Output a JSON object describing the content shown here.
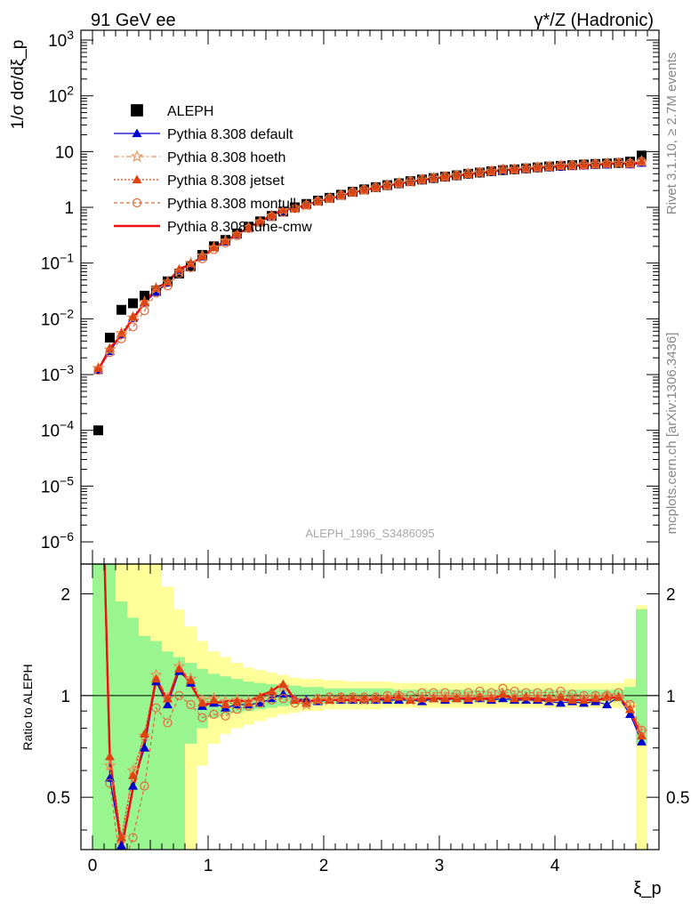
{
  "header": {
    "left": "91 GeV ee",
    "right": "γ*/Z (Hadronic)"
  },
  "side": {
    "rivet": "Rivet 3.1.10, ≥ 2.7M events",
    "mcplots": "mcplots.cern.ch [arXiv:1306.3436]"
  },
  "watermark": "ALEPH_1996_S3486095",
  "chart_data": [
    {
      "type": "scatter",
      "panel": "main",
      "ylabel": "1/σ dσ/dξ_p",
      "yscale": "log",
      "ylim": [
        4e-07,
        1500
      ],
      "xlim": [
        -0.1,
        4.9
      ],
      "ytick_labels": [
        "10^-6",
        "10^-5",
        "10^-4",
        "10^-3",
        "10^-2",
        "10^-1",
        "1",
        "10",
        "10^2",
        "10^3"
      ],
      "legend_position": "top-left",
      "x": [
        0.05,
        0.15,
        0.25,
        0.35,
        0.45,
        0.55,
        0.65,
        0.75,
        0.85,
        0.95,
        1.05,
        1.15,
        1.25,
        1.35,
        1.45,
        1.55,
        1.65,
        1.75,
        1.85,
        1.95,
        2.05,
        2.15,
        2.25,
        2.35,
        2.45,
        2.55,
        2.65,
        2.75,
        2.85,
        2.95,
        3.05,
        3.15,
        3.25,
        3.35,
        3.45,
        3.55,
        3.65,
        3.75,
        3.85,
        3.95,
        4.05,
        4.15,
        4.25,
        4.35,
        4.45,
        4.55,
        4.65,
        4.75
      ],
      "series": [
        {
          "name": "ALEPH",
          "marker": "square",
          "color": "#000000",
          "values": [
            0.0001,
            0.0046,
            0.0145,
            0.019,
            0.026,
            0.032,
            0.047,
            0.065,
            0.088,
            0.14,
            0.2,
            0.26,
            0.34,
            0.45,
            0.56,
            0.7,
            0.84,
            1.0,
            1.15,
            1.32,
            1.48,
            1.68,
            1.9,
            2.1,
            2.3,
            2.5,
            2.7,
            2.95,
            3.15,
            3.35,
            3.55,
            3.75,
            4.0,
            4.2,
            4.45,
            4.65,
            4.8,
            5.0,
            5.2,
            5.4,
            5.55,
            5.7,
            5.85,
            6.0,
            6.1,
            6.25,
            6.6,
            8.5
          ]
        },
        {
          "name": "Pythia 8.308 default",
          "marker": "triangle",
          "color": "#0000cc",
          "values": [
            0.0012,
            0.0026,
            0.0052,
            0.0103,
            0.0195,
            0.03,
            0.044,
            0.072,
            0.096,
            0.13,
            0.19,
            0.24,
            0.32,
            0.42,
            0.53,
            0.69,
            0.85,
            0.98,
            1.12,
            1.27,
            1.43,
            1.63,
            1.85,
            2.05,
            2.24,
            2.43,
            2.63,
            2.86,
            3.03,
            3.28,
            3.45,
            3.67,
            3.88,
            4.12,
            4.32,
            4.55,
            4.66,
            4.86,
            5.04,
            5.19,
            5.29,
            5.46,
            5.56,
            5.73,
            5.77,
            6.19,
            5.81,
            6.2
          ]
        },
        {
          "name": "Pythia 8.308 hoeth",
          "marker": "star",
          "color": "#e8925a",
          "values": [
            0.0013,
            0.0028,
            0.0055,
            0.0105,
            0.0198,
            0.035,
            0.046,
            0.071,
            0.1,
            0.136,
            0.19,
            0.25,
            0.33,
            0.43,
            0.55,
            0.7,
            0.89,
            0.97,
            1.08,
            1.28,
            1.44,
            1.64,
            1.86,
            2.04,
            2.25,
            2.47,
            2.69,
            2.86,
            3.1,
            3.32,
            3.5,
            3.7,
            3.94,
            4.17,
            4.39,
            4.7,
            4.74,
            4.95,
            5.15,
            5.31,
            5.52,
            5.6,
            5.7,
            5.93,
            6.09,
            6.18,
            6.1,
            6.6
          ]
        },
        {
          "name": "Pythia 8.308 jetset",
          "marker": "triangle",
          "color": "#dd4411",
          "values": [
            0.0013,
            0.003,
            0.0055,
            0.011,
            0.02,
            0.036,
            0.046,
            0.078,
            0.098,
            0.133,
            0.19,
            0.25,
            0.33,
            0.43,
            0.56,
            0.72,
            0.91,
            0.97,
            1.09,
            1.28,
            1.44,
            1.65,
            1.86,
            2.05,
            2.26,
            2.45,
            2.68,
            2.86,
            3.09,
            3.3,
            3.48,
            3.69,
            3.92,
            4.15,
            4.37,
            4.72,
            4.72,
            4.93,
            5.12,
            5.29,
            5.49,
            5.56,
            5.67,
            5.88,
            6.04,
            6.2,
            6.0,
            6.5
          ]
        },
        {
          "name": "Pythia 8.308 montull",
          "marker": "circle-open",
          "color": "#e26a3a",
          "values": [
            0.0012,
            0.0025,
            0.0044,
            0.0072,
            0.014,
            0.029,
            0.039,
            0.065,
            0.083,
            0.12,
            0.175,
            0.23,
            0.31,
            0.42,
            0.53,
            0.68,
            0.82,
            0.95,
            1.1,
            1.29,
            1.46,
            1.66,
            1.89,
            2.08,
            2.29,
            2.5,
            2.71,
            2.96,
            3.21,
            3.42,
            3.61,
            3.8,
            4.08,
            4.33,
            4.55,
            4.9,
            4.92,
            5.1,
            5.3,
            5.5,
            5.7,
            5.73,
            5.85,
            6.0,
            6.1,
            6.4,
            6.2,
            6.7
          ]
        },
        {
          "name": "Pythia 8.308 tune-cmw",
          "marker": "line",
          "color": "#ee1111",
          "values": [
            0.0012,
            0.003,
            0.005,
            0.01,
            0.019,
            0.036,
            0.045,
            0.079,
            0.095,
            0.131,
            0.19,
            0.25,
            0.33,
            0.43,
            0.56,
            0.72,
            0.92,
            0.97,
            1.1,
            1.28,
            1.43,
            1.63,
            1.85,
            2.04,
            2.25,
            2.45,
            2.66,
            2.87,
            3.09,
            3.3,
            3.48,
            3.68,
            3.92,
            4.12,
            4.34,
            4.67,
            4.69,
            4.88,
            5.09,
            5.26,
            5.41,
            5.51,
            5.66,
            5.83,
            5.98,
            6.19,
            5.99,
            6.4
          ]
        }
      ]
    },
    {
      "type": "line",
      "panel": "ratio",
      "xlabel": "ξ_p",
      "ylabel": "Ratio to ALEPH",
      "yscale": "log",
      "ylim": [
        0.35,
        2.45
      ],
      "xlim": [
        -0.1,
        4.9
      ],
      "x_tick_labels": [
        "0",
        "1",
        "2",
        "3",
        "4"
      ],
      "y_tick_labels": [
        "0.5",
        "1",
        "2"
      ],
      "x": [
        0.05,
        0.15,
        0.25,
        0.35,
        0.45,
        0.55,
        0.65,
        0.75,
        0.85,
        0.95,
        1.05,
        1.15,
        1.25,
        1.35,
        1.45,
        1.55,
        1.65,
        1.75,
        1.85,
        1.95,
        2.05,
        2.15,
        2.25,
        2.35,
        2.45,
        2.55,
        2.65,
        2.75,
        2.85,
        2.95,
        3.05,
        3.15,
        3.25,
        3.35,
        3.45,
        3.55,
        3.65,
        3.75,
        3.85,
        3.95,
        4.05,
        4.15,
        4.25,
        4.35,
        4.45,
        4.55,
        4.65,
        4.75
      ],
      "band_stat": [
        [
          0.3,
          3.0
        ],
        [
          0.3,
          2.5
        ],
        [
          0.3,
          1.9
        ],
        [
          0.3,
          1.7
        ],
        [
          0.3,
          1.5
        ],
        [
          0.3,
          1.45
        ],
        [
          0.3,
          1.35
        ],
        [
          0.3,
          1.3
        ],
        [
          0.72,
          1.25
        ],
        [
          0.8,
          1.2
        ],
        [
          0.86,
          1.16
        ],
        [
          0.88,
          1.14
        ],
        [
          0.89,
          1.12
        ],
        [
          0.9,
          1.1
        ],
        [
          0.91,
          1.09
        ],
        [
          0.92,
          1.08
        ],
        [
          0.93,
          1.07
        ],
        [
          0.94,
          1.07
        ],
        [
          0.94,
          1.06
        ],
        [
          0.94,
          1.06
        ],
        [
          0.95,
          1.05
        ],
        [
          0.95,
          1.05
        ],
        [
          0.95,
          1.05
        ],
        [
          0.95,
          1.05
        ],
        [
          0.95,
          1.05
        ],
        [
          0.95,
          1.05
        ],
        [
          0.96,
          1.04
        ],
        [
          0.96,
          1.04
        ],
        [
          0.96,
          1.04
        ],
        [
          0.96,
          1.04
        ],
        [
          0.96,
          1.04
        ],
        [
          0.96,
          1.04
        ],
        [
          0.96,
          1.04
        ],
        [
          0.96,
          1.04
        ],
        [
          0.96,
          1.04
        ],
        [
          0.96,
          1.04
        ],
        [
          0.96,
          1.04
        ],
        [
          0.96,
          1.04
        ],
        [
          0.96,
          1.04
        ],
        [
          0.96,
          1.04
        ],
        [
          0.96,
          1.04
        ],
        [
          0.96,
          1.04
        ],
        [
          0.96,
          1.04
        ],
        [
          0.96,
          1.04
        ],
        [
          0.96,
          1.04
        ],
        [
          0.96,
          1.04
        ],
        [
          0.95,
          1.06
        ],
        [
          0.72,
          1.8
        ]
      ],
      "band_total": [
        [
          0.3,
          3.0
        ],
        [
          0.3,
          3.0
        ],
        [
          0.3,
          3.0
        ],
        [
          0.3,
          3.0
        ],
        [
          0.3,
          3.0
        ],
        [
          0.3,
          2.8
        ],
        [
          0.3,
          2.1
        ],
        [
          0.3,
          1.8
        ],
        [
          0.3,
          1.6
        ],
        [
          0.62,
          1.45
        ],
        [
          0.72,
          1.35
        ],
        [
          0.77,
          1.3
        ],
        [
          0.8,
          1.25
        ],
        [
          0.82,
          1.21
        ],
        [
          0.84,
          1.19
        ],
        [
          0.86,
          1.17
        ],
        [
          0.88,
          1.15
        ],
        [
          0.89,
          1.13
        ],
        [
          0.9,
          1.12
        ],
        [
          0.9,
          1.12
        ],
        [
          0.91,
          1.11
        ],
        [
          0.91,
          1.11
        ],
        [
          0.91,
          1.1
        ],
        [
          0.91,
          1.1
        ],
        [
          0.91,
          1.1
        ],
        [
          0.92,
          1.1
        ],
        [
          0.92,
          1.09
        ],
        [
          0.92,
          1.09
        ],
        [
          0.92,
          1.09
        ],
        [
          0.92,
          1.09
        ],
        [
          0.92,
          1.09
        ],
        [
          0.92,
          1.09
        ],
        [
          0.92,
          1.09
        ],
        [
          0.92,
          1.09
        ],
        [
          0.92,
          1.09
        ],
        [
          0.92,
          1.09
        ],
        [
          0.92,
          1.09
        ],
        [
          0.92,
          1.09
        ],
        [
          0.92,
          1.09
        ],
        [
          0.92,
          1.09
        ],
        [
          0.92,
          1.09
        ],
        [
          0.92,
          1.09
        ],
        [
          0.92,
          1.09
        ],
        [
          0.92,
          1.09
        ],
        [
          0.92,
          1.09
        ],
        [
          0.92,
          1.09
        ],
        [
          0.9,
          1.12
        ],
        [
          0.3,
          1.85
        ]
      ],
      "band_colors": {
        "stat": "#99f58f",
        "total": "#ffff99"
      },
      "series": [
        {
          "name": "Pythia 8.308 default",
          "color": "#0000cc",
          "marker": "triangle",
          "values": [
            12.0,
            0.57,
            0.36,
            0.54,
            0.7,
            1.1,
            0.94,
            1.18,
            1.09,
            0.93,
            0.95,
            0.92,
            0.94,
            0.94,
            0.95,
            0.98,
            1.01,
            0.98,
            0.97,
            0.96,
            0.97,
            0.97,
            0.97,
            0.97,
            0.97,
            0.97,
            0.97,
            0.97,
            0.96,
            0.98,
            0.97,
            0.98,
            0.97,
            0.98,
            0.97,
            0.98,
            0.97,
            0.97,
            0.97,
            0.96,
            0.95,
            0.96,
            0.95,
            0.96,
            0.94,
            0.99,
            0.88,
            0.73
          ]
        },
        {
          "name": "Pythia 8.308 hoeth",
          "color": "#e8925a",
          "marker": "star",
          "values": [
            13.0,
            0.62,
            0.38,
            0.6,
            0.76,
            1.15,
            0.98,
            1.22,
            1.12,
            0.97,
            0.98,
            0.96,
            0.97,
            0.96,
            0.98,
            1.0,
            1.06,
            0.97,
            0.94,
            0.97,
            0.97,
            0.98,
            0.98,
            0.97,
            0.98,
            0.99,
            1.0,
            0.97,
            0.98,
            0.99,
            0.99,
            0.99,
            0.99,
            0.99,
            0.99,
            1.01,
            0.99,
            0.99,
            0.99,
            0.98,
            0.99,
            0.98,
            0.98,
            0.99,
            1.0,
            0.99,
            0.92,
            0.78
          ]
        },
        {
          "name": "Pythia 8.308 jetset",
          "color": "#dd4411",
          "marker": "triangle",
          "values": [
            13.0,
            0.66,
            0.38,
            0.58,
            0.77,
            1.12,
            0.98,
            1.2,
            1.11,
            0.95,
            0.97,
            0.94,
            0.96,
            0.95,
            0.99,
            1.03,
            1.08,
            0.97,
            0.95,
            0.97,
            0.97,
            0.98,
            0.98,
            0.98,
            0.98,
            0.98,
            0.99,
            0.97,
            0.98,
            0.98,
            0.98,
            0.98,
            0.98,
            0.99,
            0.98,
            1.01,
            0.98,
            0.99,
            0.98,
            0.98,
            0.99,
            0.97,
            0.97,
            0.98,
            0.99,
            0.99,
            0.91,
            0.76
          ]
        },
        {
          "name": "Pythia 8.308 montull",
          "color": "#e26a3a",
          "marker": "circle-open",
          "values": [
            12.0,
            0.55,
            0.3,
            0.38,
            0.54,
            0.92,
            0.83,
            1.0,
            0.94,
            0.86,
            0.88,
            0.87,
            0.91,
            0.93,
            0.95,
            0.97,
            0.98,
            0.95,
            0.96,
            0.98,
            0.99,
            0.99,
            0.99,
            0.99,
            0.99,
            1.0,
            1.0,
            1.0,
            1.02,
            1.02,
            1.02,
            1.01,
            1.02,
            1.03,
            1.02,
            1.05,
            1.03,
            1.02,
            1.02,
            1.02,
            1.03,
            1.01,
            1.0,
            1.0,
            1.0,
            1.02,
            0.94,
            0.79
          ]
        },
        {
          "name": "Pythia 8.308 tune-cmw",
          "color": "#ee1111",
          "marker": "line",
          "values": [
            12.0,
            0.66,
            0.35,
            0.53,
            0.73,
            1.12,
            0.96,
            1.21,
            1.08,
            0.94,
            0.95,
            0.96,
            0.97,
            0.96,
            1.0,
            1.03,
            1.09,
            0.97,
            0.96,
            0.97,
            0.97,
            0.97,
            0.97,
            0.97,
            0.98,
            0.98,
            0.99,
            0.97,
            0.98,
            0.98,
            0.98,
            0.98,
            0.98,
            0.98,
            0.98,
            1.0,
            0.98,
            0.98,
            0.98,
            0.97,
            0.97,
            0.97,
            0.97,
            0.97,
            0.98,
            0.99,
            0.91,
            0.75
          ]
        }
      ]
    }
  ]
}
